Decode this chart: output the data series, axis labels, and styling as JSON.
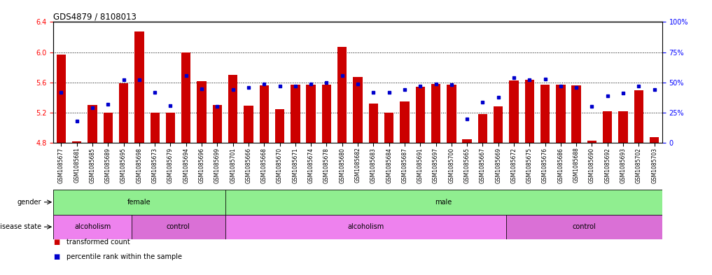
{
  "title": "GDS4879 / 8108013",
  "ylim_left": [
    4.8,
    6.4
  ],
  "ylim_right": [
    0,
    100
  ],
  "yticks_left": [
    4.8,
    5.2,
    5.6,
    6.0,
    6.4
  ],
  "yticks_right": [
    0,
    25,
    50,
    75,
    100
  ],
  "bar_color": "#cc0000",
  "dot_color": "#0000cc",
  "bar_bottom": 4.8,
  "samples": [
    "GSM1085677",
    "GSM1085681",
    "GSM1085685",
    "GSM1085689",
    "GSM1085695",
    "GSM1085698",
    "GSM1085673",
    "GSM1085679",
    "GSM1085694",
    "GSM1085696",
    "GSM1085699",
    "GSM1085701",
    "GSM1085666",
    "GSM1085668",
    "GSM1085670",
    "GSM1085671",
    "GSM1085674",
    "GSM1085678",
    "GSM1085680",
    "GSM1085682",
    "GSM1085683",
    "GSM1085684",
    "GSM1085687",
    "GSM1085691",
    "GSM1085697",
    "GSM1085700",
    "GSM1085665",
    "GSM1085667",
    "GSM1085669",
    "GSM1085672",
    "GSM1085675",
    "GSM1085676",
    "GSM1085686",
    "GSM1085688",
    "GSM1085690",
    "GSM1085692",
    "GSM1085693",
    "GSM1085702",
    "GSM1085703"
  ],
  "bar_heights": [
    5.97,
    4.82,
    5.3,
    5.2,
    5.59,
    6.27,
    5.2,
    5.2,
    6.0,
    5.62,
    5.3,
    5.7,
    5.29,
    5.56,
    5.25,
    5.57,
    5.57,
    5.57,
    6.07,
    5.67,
    5.32,
    5.2,
    5.35,
    5.54,
    5.58,
    5.57,
    4.85,
    5.18,
    5.28,
    5.63,
    5.64,
    5.57,
    5.57,
    5.56,
    4.83,
    5.22,
    5.22,
    5.5,
    4.88
  ],
  "percentile_ranks": [
    42,
    18,
    29,
    32,
    52,
    52,
    42,
    31,
    56,
    45,
    30,
    44,
    46,
    49,
    47,
    47,
    49,
    50,
    56,
    49,
    42,
    42,
    44,
    47,
    49,
    48,
    20,
    34,
    38,
    54,
    52,
    53,
    47,
    46,
    30,
    39,
    41,
    47,
    44
  ],
  "gender_data": [
    {
      "label": "female",
      "start": 0,
      "end": 10,
      "color": "#90EE90"
    },
    {
      "label": "male",
      "start": 11,
      "end": 38,
      "color": "#90EE90"
    }
  ],
  "disease_data": [
    {
      "label": "alcoholism",
      "start": 0,
      "end": 4,
      "color": "#EE82EE"
    },
    {
      "label": "control",
      "start": 5,
      "end": 10,
      "color": "#DA70D6"
    },
    {
      "label": "alcoholism",
      "start": 11,
      "end": 28,
      "color": "#EE82EE"
    },
    {
      "label": "control",
      "start": 29,
      "end": 38,
      "color": "#DA70D6"
    }
  ],
  "legend_items": [
    {
      "color": "#cc0000",
      "label": "transformed count"
    },
    {
      "color": "#0000cc",
      "label": "percentile rank within the sample"
    }
  ]
}
